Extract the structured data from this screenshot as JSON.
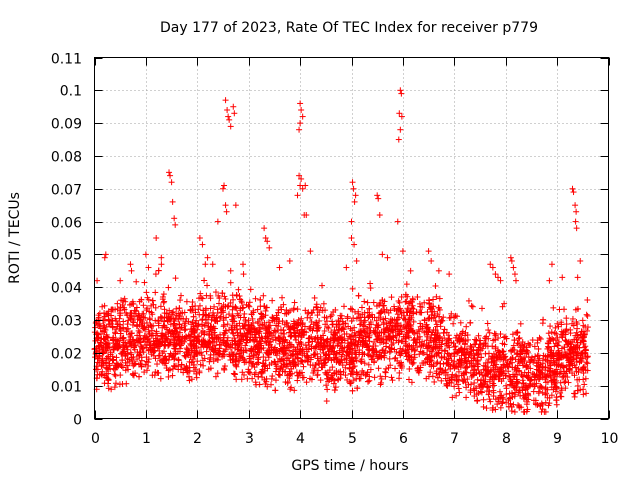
{
  "chart_data": {
    "type": "scatter",
    "title": "Day 177 of 2023, Rate Of TEC Index for receiver p779",
    "xlabel": "GPS time / hours",
    "ylabel": "ROTI / TECUs",
    "xlim": [
      0,
      10
    ],
    "ylim": [
      0,
      0.11
    ],
    "xticks": [
      "0",
      "1",
      "2",
      "3",
      "4",
      "5",
      "6",
      "7",
      "8",
      "9",
      "10"
    ],
    "yticks": [
      "0",
      "0.01",
      "0.02",
      "0.03",
      "0.04",
      "0.05",
      "0.06",
      "0.07",
      "0.08",
      "0.09",
      "0.1",
      "0.11"
    ],
    "grid": true,
    "marker": "+",
    "color": "#ff0000",
    "data_extent_hours": [
      0,
      9.6
    ],
    "typical_range": [
      0.005,
      0.035
    ],
    "series": [
      {
        "name": "ROTI",
        "points": [
          [
            0.2,
            0.049
          ],
          [
            0.22,
            0.05
          ],
          [
            0.05,
            0.042
          ],
          [
            0.5,
            0.042
          ],
          [
            0.7,
            0.047
          ],
          [
            0.72,
            0.045
          ],
          [
            1.0,
            0.05
          ],
          [
            1.05,
            0.046
          ],
          [
            1.2,
            0.055
          ],
          [
            1.3,
            0.049
          ],
          [
            1.45,
            0.075
          ],
          [
            1.47,
            0.074
          ],
          [
            1.5,
            0.072
          ],
          [
            1.52,
            0.066
          ],
          [
            1.55,
            0.061
          ],
          [
            1.57,
            0.059
          ],
          [
            2.05,
            0.055
          ],
          [
            2.1,
            0.053
          ],
          [
            2.2,
            0.049
          ],
          [
            2.3,
            0.047
          ],
          [
            2.4,
            0.06
          ],
          [
            2.5,
            0.07
          ],
          [
            2.52,
            0.071
          ],
          [
            2.55,
            0.065
          ],
          [
            2.57,
            0.063
          ],
          [
            2.55,
            0.097
          ],
          [
            2.58,
            0.094
          ],
          [
            2.6,
            0.092
          ],
          [
            2.62,
            0.091
          ],
          [
            2.65,
            0.089
          ],
          [
            2.7,
            0.095
          ],
          [
            2.72,
            0.093
          ],
          [
            2.75,
            0.065
          ],
          [
            2.65,
            0.045
          ],
          [
            2.9,
            0.044
          ],
          [
            3.3,
            0.058
          ],
          [
            3.33,
            0.055
          ],
          [
            3.36,
            0.054
          ],
          [
            3.4,
            0.052
          ],
          [
            3.6,
            0.046
          ],
          [
            3.8,
            0.048
          ],
          [
            3.95,
            0.068
          ],
          [
            3.98,
            0.074
          ],
          [
            4.0,
            0.071
          ],
          [
            4.02,
            0.073
          ],
          [
            4.05,
            0.07
          ],
          [
            4.1,
            0.071
          ],
          [
            4.0,
            0.096
          ],
          [
            4.02,
            0.094
          ],
          [
            4.05,
            0.092
          ],
          [
            4.0,
            0.09
          ],
          [
            3.98,
            0.088
          ],
          [
            4.08,
            0.062
          ],
          [
            4.12,
            0.062
          ],
          [
            4.2,
            0.051
          ],
          [
            4.9,
            0.046
          ],
          [
            5.0,
            0.06
          ],
          [
            5.02,
            0.072
          ],
          [
            5.04,
            0.07
          ],
          [
            5.06,
            0.066
          ],
          [
            5.08,
            0.068
          ],
          [
            5.0,
            0.055
          ],
          [
            5.05,
            0.053
          ],
          [
            5.1,
            0.048
          ],
          [
            5.5,
            0.068
          ],
          [
            5.52,
            0.067
          ],
          [
            5.55,
            0.062
          ],
          [
            5.6,
            0.05
          ],
          [
            5.7,
            0.049
          ],
          [
            5.95,
            0.1
          ],
          [
            5.97,
            0.099
          ],
          [
            5.93,
            0.093
          ],
          [
            5.98,
            0.092
          ],
          [
            5.95,
            0.088
          ],
          [
            5.92,
            0.085
          ],
          [
            5.9,
            0.06
          ],
          [
            6.0,
            0.051
          ],
          [
            6.5,
            0.051
          ],
          [
            6.55,
            0.048
          ],
          [
            6.7,
            0.045
          ],
          [
            6.9,
            0.044
          ],
          [
            7.7,
            0.047
          ],
          [
            7.75,
            0.046
          ],
          [
            7.8,
            0.044
          ],
          [
            7.85,
            0.043
          ],
          [
            7.9,
            0.042
          ],
          [
            8.1,
            0.049
          ],
          [
            8.12,
            0.048
          ],
          [
            8.15,
            0.046
          ],
          [
            8.18,
            0.044
          ],
          [
            8.2,
            0.042
          ],
          [
            8.9,
            0.047
          ],
          [
            8.85,
            0.042
          ],
          [
            9.1,
            0.043
          ],
          [
            9.3,
            0.07
          ],
          [
            9.32,
            0.069
          ],
          [
            9.35,
            0.065
          ],
          [
            9.37,
            0.063
          ],
          [
            9.36,
            0.06
          ],
          [
            9.38,
            0.058
          ],
          [
            9.45,
            0.048
          ],
          [
            9.4,
            0.043
          ]
        ]
      }
    ]
  }
}
